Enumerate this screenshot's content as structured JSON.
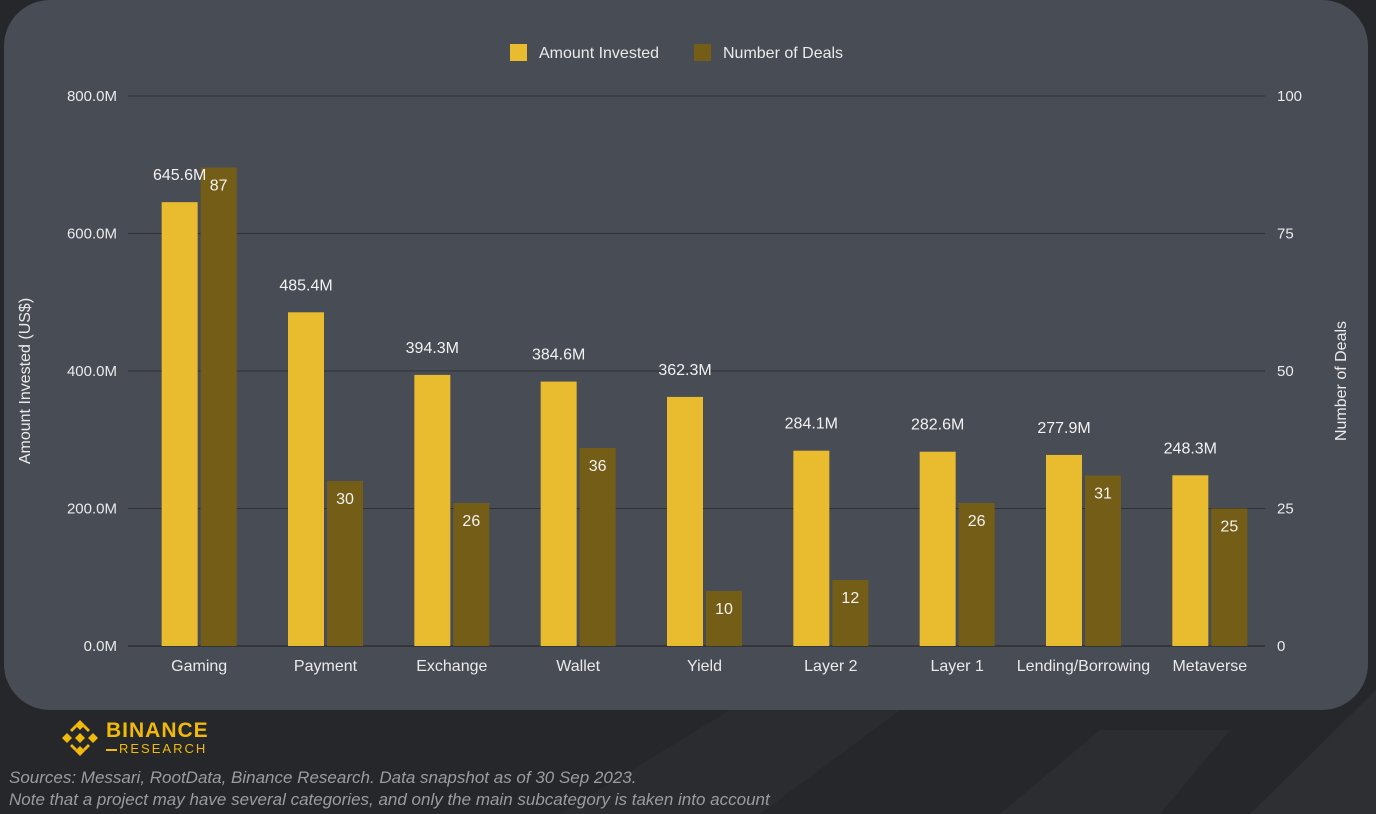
{
  "colors": {
    "amount": "#e9bb2e",
    "deals": "#745e17",
    "brand": "#f0b90b"
  },
  "chart_data": {
    "type": "bar",
    "categories": [
      "Gaming",
      "Payment",
      "Exchange",
      "Wallet",
      "Yield",
      "Layer 2",
      "Layer 1",
      "Lending/Borrowing",
      "Metaverse"
    ],
    "series": [
      {
        "name": "Amount Invested",
        "axis": "left",
        "values": [
          645.6,
          485.4,
          394.3,
          384.6,
          362.3,
          284.1,
          282.6,
          277.9,
          248.3
        ],
        "labels": [
          "645.6M",
          "485.4M",
          "394.3M",
          "384.6M",
          "362.3M",
          "284.1M",
          "282.6M",
          "277.9M",
          "248.3M"
        ]
      },
      {
        "name": "Number of Deals",
        "axis": "right",
        "values": [
          87,
          30,
          26,
          36,
          10,
          12,
          26,
          31,
          25
        ],
        "labels": [
          "87",
          "30",
          "26",
          "36",
          "10",
          "12",
          "26",
          "31",
          "25"
        ]
      }
    ],
    "ylabel_left": "Amount Invested (US$)",
    "ylabel_right": "Number of Deals",
    "ylim_left": [
      0,
      800
    ],
    "ylim_right": [
      0,
      100
    ],
    "yticks_left": [
      "0.0M",
      "200.0M",
      "400.0M",
      "600.0M",
      "800.0M"
    ],
    "yticks_right": [
      "0",
      "25",
      "50",
      "75",
      "100"
    ],
    "grid": true,
    "legend_position": "top-center"
  },
  "brand": {
    "name": "BINANCE",
    "sub": "RESEARCH"
  },
  "footnotes": {
    "sources": "Sources: Messari, RootData, Binance Research. Data snapshot as of 30 Sep 2023.",
    "note": "Note that a project may have several categories, and only the main subcategory is taken into account"
  }
}
